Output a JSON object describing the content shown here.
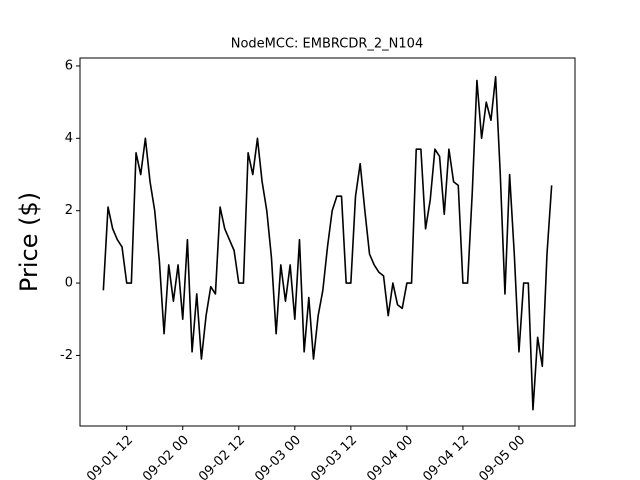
{
  "chart_data": {
    "type": "line",
    "title": "NodeMCC: EMBRCDR_2_N104",
    "y_label": "Price ($)",
    "x": [
      "09-01 07",
      "09-01 08",
      "09-01 09",
      "09-01 10",
      "09-01 11",
      "09-01 12",
      "09-01 13",
      "09-01 14",
      "09-01 15",
      "09-01 16",
      "09-01 17",
      "09-01 18",
      "09-01 19",
      "09-01 20",
      "09-01 21",
      "09-01 22",
      "09-01 23",
      "09-02 00",
      "09-02 01",
      "09-02 02",
      "09-02 03",
      "09-02 04",
      "09-02 05",
      "09-02 06",
      "09-02 07",
      "09-02 08",
      "09-02 09",
      "09-02 10",
      "09-02 11",
      "09-02 12",
      "09-02 13",
      "09-02 14",
      "09-02 15",
      "09-02 16",
      "09-02 17",
      "09-02 18",
      "09-02 19",
      "09-02 20",
      "09-02 21",
      "09-02 22",
      "09-02 23",
      "09-03 00",
      "09-03 01",
      "09-03 02",
      "09-03 03",
      "09-03 04",
      "09-03 05",
      "09-03 06",
      "09-03 07",
      "09-03 08",
      "09-03 09",
      "09-03 10",
      "09-03 11",
      "09-03 12",
      "09-03 13",
      "09-03 14",
      "09-03 15",
      "09-03 16",
      "09-03 17",
      "09-03 18",
      "09-03 19",
      "09-03 20",
      "09-03 21",
      "09-03 22",
      "09-03 23",
      "09-04 00",
      "09-04 01",
      "09-04 02",
      "09-04 03",
      "09-04 04",
      "09-04 05",
      "09-04 06",
      "09-04 07",
      "09-04 08",
      "09-04 09",
      "09-04 10",
      "09-04 11",
      "09-04 12",
      "09-04 13",
      "09-04 14",
      "09-04 15",
      "09-04 16",
      "09-04 17",
      "09-04 18",
      "09-04 19",
      "09-04 20",
      "09-04 21",
      "09-04 22",
      "09-04 23",
      "09-05 00",
      "09-05 01",
      "09-05 02",
      "09-05 03",
      "09-05 04",
      "09-05 05",
      "09-05 06",
      "09-05 07"
    ],
    "series": [
      {
        "color": "#000000",
        "values": [
          -0.2,
          2.1,
          1.5,
          1.2,
          1.0,
          0.0,
          0.0,
          3.6,
          3.0,
          4.0,
          2.8,
          2.0,
          0.6,
          -1.4,
          0.5,
          -0.5,
          0.5,
          -1.0,
          1.2,
          -1.9,
          -0.3,
          -2.1,
          -0.9,
          -0.1,
          -0.3,
          2.1,
          1.5,
          1.2,
          0.9,
          0.0,
          0.0,
          3.6,
          3.0,
          4.0,
          2.8,
          2.0,
          0.7,
          -1.4,
          0.5,
          -0.5,
          0.5,
          -1.0,
          1.2,
          -1.9,
          -0.4,
          -2.1,
          -0.9,
          -0.2,
          1.0,
          2.0,
          2.4,
          2.4,
          0.0,
          0.0,
          2.4,
          3.3,
          2.0,
          0.8,
          0.5,
          0.3,
          0.2,
          -0.9,
          0.0,
          -0.6,
          -0.7,
          0.0,
          0.0,
          3.7,
          3.7,
          1.5,
          2.3,
          3.7,
          3.5,
          1.9,
          3.7,
          2.8,
          2.7,
          0.0,
          0.0,
          2.5,
          5.6,
          4.0,
          5.0,
          4.5,
          5.7,
          3.0,
          -0.3,
          3.0,
          0.8,
          -1.9,
          0.0,
          0.0,
          -3.5,
          -1.5,
          -2.3,
          0.8,
          2.7
        ]
      }
    ],
    "xlim": [
      "09-01 02",
      "09-05 12"
    ],
    "xticks": [
      "09-01 12",
      "09-02 00",
      "09-02 12",
      "09-03 00",
      "09-03 12",
      "09-04 00",
      "09-04 12",
      "09-05 00"
    ],
    "ylim": [
      -3.95,
      6.22
    ],
    "yticks": [
      -2,
      0,
      2,
      4,
      6
    ]
  }
}
